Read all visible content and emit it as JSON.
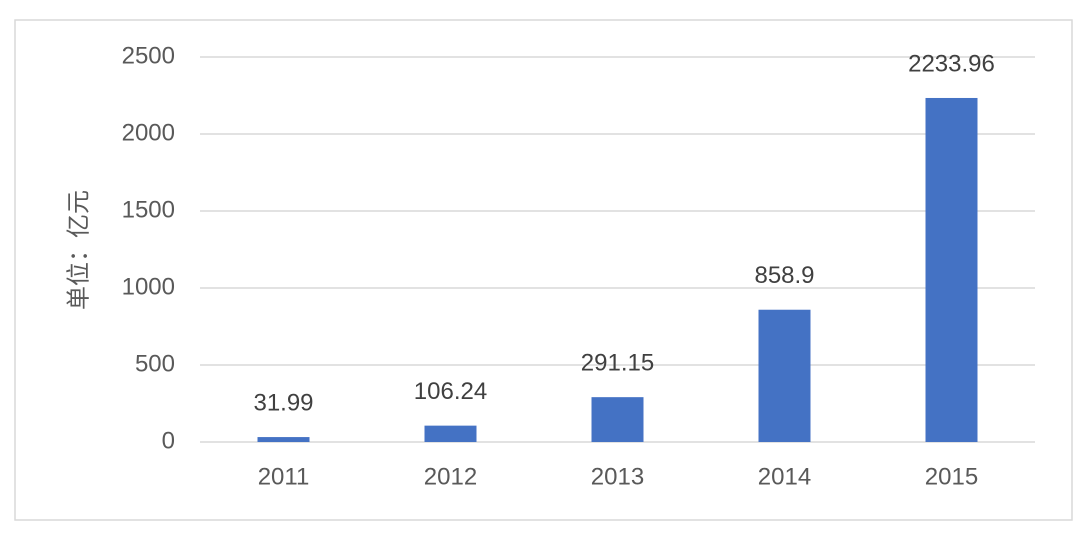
{
  "chart_data": {
    "type": "bar",
    "y_label": "单位：亿元",
    "categories": [
      "2011",
      "2012",
      "2013",
      "2014",
      "2015"
    ],
    "values": [
      31.99,
      106.24,
      291.15,
      858.9,
      2233.96
    ],
    "color": "#4472c4",
    "ylim": [
      0,
      2500
    ],
    "yticks": [
      0,
      500,
      1000,
      1500,
      2000,
      2500
    ],
    "grid": true
  }
}
